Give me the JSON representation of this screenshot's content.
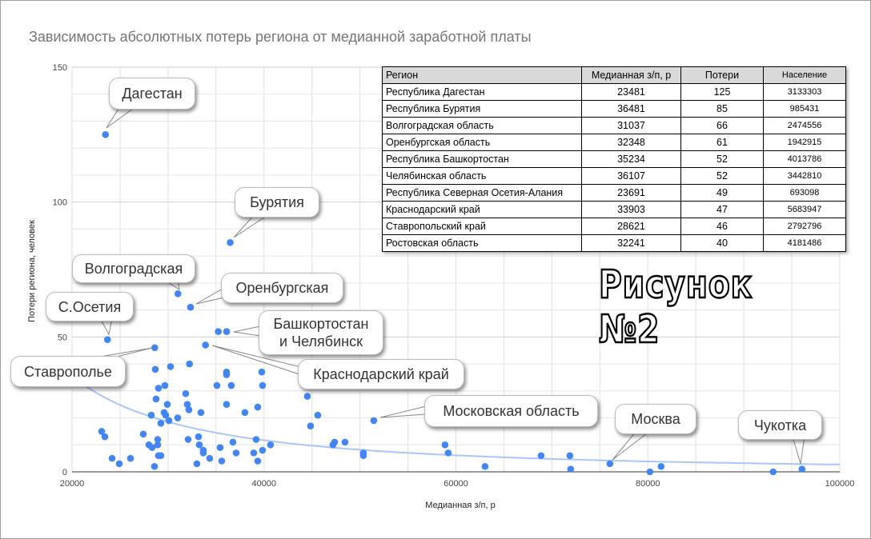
{
  "chart_data": {
    "type": "scatter",
    "title": "Зависимость абсолютных потерь региона от медианной заработной платы",
    "xlabel": "Медианная з/п, р",
    "ylabel": "Потери региона, человек",
    "xlim": [
      20000,
      100000
    ],
    "ylim": [
      0,
      150
    ],
    "x_ticks": [
      "20000",
      "40000",
      "60000",
      "80000",
      "100000"
    ],
    "y_ticks": [
      "0",
      "50",
      "100",
      "150"
    ],
    "grid": true,
    "point_color": "#4285f4",
    "trendline": {
      "type": "power",
      "color": "#a7c7fa"
    },
    "points": [
      [
        23481,
        125
      ],
      [
        36481,
        85
      ],
      [
        31037,
        66
      ],
      [
        32348,
        61
      ],
      [
        35234,
        52
      ],
      [
        36107,
        52
      ],
      [
        23691,
        49
      ],
      [
        33903,
        47
      ],
      [
        28621,
        46
      ],
      [
        32241,
        40
      ],
      [
        28674,
        38
      ],
      [
        30258,
        39
      ],
      [
        36096,
        37
      ],
      [
        36096,
        36
      ],
      [
        39766,
        37
      ],
      [
        35095,
        32
      ],
      [
        36597,
        32
      ],
      [
        39849,
        32
      ],
      [
        29674,
        32
      ],
      [
        29007,
        31
      ],
      [
        31843,
        29
      ],
      [
        28757,
        27
      ],
      [
        29925,
        25
      ],
      [
        32010,
        25
      ],
      [
        32176,
        23
      ],
      [
        36096,
        25
      ],
      [
        33427,
        22
      ],
      [
        39349,
        24
      ],
      [
        38014,
        22
      ],
      [
        44520,
        28
      ],
      [
        28257,
        21
      ],
      [
        29591,
        22
      ],
      [
        29758,
        21
      ],
      [
        31009,
        20
      ],
      [
        30091,
        19
      ],
      [
        29257,
        18
      ],
      [
        45604,
        21
      ],
      [
        44853,
        17
      ],
      [
        51442,
        19
      ],
      [
        23086,
        15
      ],
      [
        23419,
        13
      ],
      [
        27423,
        14
      ],
      [
        28006,
        10
      ],
      [
        28340,
        9
      ],
      [
        28924,
        12
      ],
      [
        28924,
        10
      ],
      [
        32093,
        12
      ],
      [
        33177,
        13
      ],
      [
        33261,
        10
      ],
      [
        33678,
        8
      ],
      [
        33678,
        7
      ],
      [
        34345,
        5
      ],
      [
        33010,
        3
      ],
      [
        35596,
        4
      ],
      [
        35429,
        9
      ],
      [
        36763,
        11
      ],
      [
        37097,
        7
      ],
      [
        39182,
        12
      ],
      [
        38932,
        7
      ],
      [
        39349,
        4
      ],
      [
        39849,
        8
      ],
      [
        40683,
        10
      ],
      [
        47188,
        10
      ],
      [
        47355,
        11
      ],
      [
        48439,
        11
      ],
      [
        50358,
        7
      ],
      [
        50358,
        6
      ],
      [
        24170,
        5
      ],
      [
        24921,
        3
      ],
      [
        26088,
        5
      ],
      [
        28590,
        2
      ],
      [
        29007,
        6
      ],
      [
        29257,
        6
      ],
      [
        58864,
        10
      ],
      [
        59198,
        7
      ],
      [
        63034,
        2
      ],
      [
        68872,
        6
      ],
      [
        71875,
        6
      ],
      [
        71958,
        1
      ],
      [
        76045,
        3
      ],
      [
        80215,
        0
      ],
      [
        81382,
        2
      ],
      [
        93058,
        0
      ],
      [
        96061,
        1
      ]
    ],
    "annotations": [
      "Дагестан",
      "Бурятия",
      "Волгоградская",
      "Оренбургская",
      "С.Осетия",
      "Башкортостан и Челябинск",
      "Ставрополье",
      "Краснодарский край",
      "Московская область",
      "Москва",
      "Чукотка"
    ]
  },
  "callouts": {
    "dagestan": "Дагестан",
    "buryatia": "Бурятия",
    "volgograd": "Волгоградская",
    "orenburg": "Оренбургская",
    "ossetia": "С.Осетия",
    "bashk_line1": "Башкортостан",
    "bashk_line2": "и Челябинск",
    "stavropol": "Ставрополье",
    "krasnodar": "Краснодарский край",
    "moscow_obl": "Московская область",
    "moscow": "Москва",
    "chukotka": "Чукотка"
  },
  "table": {
    "headers": [
      "Регион",
      "Медианная з/п, р",
      "Потери",
      "Население"
    ],
    "rows": [
      [
        "Республика Дагестан",
        "23481",
        "125",
        "3133303"
      ],
      [
        "Республика Бурятия",
        "36481",
        "85",
        "985431"
      ],
      [
        "Волгоградская область",
        "31037",
        "66",
        "2474556"
      ],
      [
        "Оренбургская область",
        "32348",
        "61",
        "1942915"
      ],
      [
        "Республика Башкортостан",
        "35234",
        "52",
        "4013786"
      ],
      [
        "Челябинская область",
        "36107",
        "52",
        "3442810"
      ],
      [
        "Республика Северная Осетия-Алания",
        "23691",
        "49",
        "693098"
      ],
      [
        "Краснодарский край",
        "33903",
        "47",
        "5683947"
      ],
      [
        "Ставропольский край",
        "28621",
        "46",
        "2792796"
      ],
      [
        "Ростовская область",
        "32241",
        "40",
        "4181486"
      ]
    ]
  },
  "figure_label": "Рисунок №2"
}
